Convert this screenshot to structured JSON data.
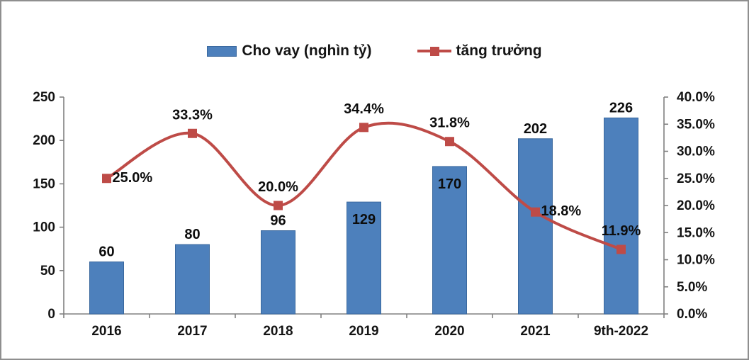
{
  "chart_data": {
    "type": "bar",
    "combo": "bar+line",
    "title": "",
    "categories": [
      "2016",
      "2017",
      "2018",
      "2019",
      "2020",
      "2021",
      "9th-2022"
    ],
    "series": [
      {
        "name": "Cho vay (nghìn tỷ)",
        "type": "bar",
        "axis": "left",
        "values": [
          60,
          80,
          96,
          129,
          170,
          202,
          226
        ],
        "labels": [
          "60",
          "80",
          "96",
          "129",
          "170",
          "202",
          "226"
        ],
        "color": "#4d80bc",
        "border_color": "#3a689e"
      },
      {
        "name": "tăng trưởng",
        "type": "line",
        "axis": "right",
        "values": [
          25.0,
          33.3,
          20.0,
          34.4,
          31.8,
          18.8,
          11.9
        ],
        "labels": [
          "25.0%",
          "33.3%",
          "20.0%",
          "34.4%",
          "31.8%",
          "18.8%",
          "11.9%"
        ],
        "color": "#be4b47"
      }
    ],
    "left_axis": {
      "min": 0,
      "max": 250,
      "step": 50,
      "ticks": [
        "0",
        "50",
        "100",
        "150",
        "200",
        "250"
      ]
    },
    "right_axis": {
      "min": 0,
      "max": 40,
      "step": 5,
      "ticks": [
        "0.0%",
        "5.0%",
        "10.0%",
        "15.0%",
        "20.0%",
        "25.0%",
        "30.0%",
        "35.0%",
        "40.0%"
      ]
    },
    "layout_hints": {
      "smooth_line": true,
      "grid": false,
      "legend_position": "top",
      "axis_color": "#808080",
      "bar_label_inside": [
        false,
        false,
        false,
        true,
        true,
        false,
        false
      ],
      "line_label_pos": [
        "right",
        "above",
        "above",
        "above",
        "above",
        "right",
        "above"
      ]
    }
  }
}
